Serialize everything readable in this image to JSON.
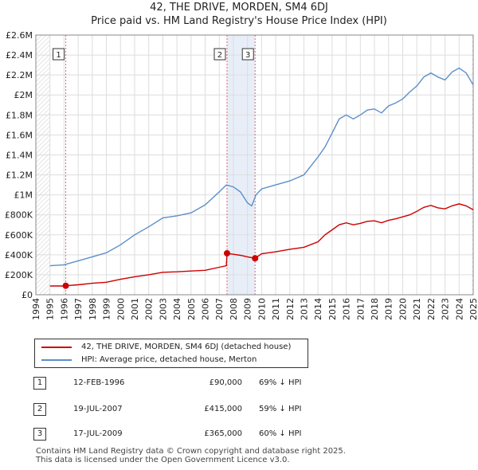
{
  "title_line1": "42, THE DRIVE, MORDEN, SM4 6DJ",
  "title_line2": "Price paid vs. HM Land Registry's House Price Index (HPI)",
  "colors": {
    "property": "#cc0000",
    "hpi": "#5b8fc9",
    "grid": "#dddddd",
    "vline": "#e06666",
    "shade": "#e8eef8"
  },
  "legend": {
    "property_label": "42, THE DRIVE, MORDEN, SM4 6DJ (detached house)",
    "hpi_label": "HPI: Average price, detached house, Merton"
  },
  "sales": [
    {
      "num": "1",
      "date": "12-FEB-1996",
      "price": "£90,000",
      "hpi_diff": "69% ↓ HPI"
    },
    {
      "num": "2",
      "date": "19-JUL-2007",
      "price": "£415,000",
      "hpi_diff": "59% ↓ HPI"
    },
    {
      "num": "3",
      "date": "17-JUL-2009",
      "price": "£365,000",
      "hpi_diff": "60% ↓ HPI"
    }
  ],
  "footer_line1": "Contains HM Land Registry data © Crown copyright and database right 2025.",
  "footer_line2": "This data is licensed under the Open Government Licence v3.0.",
  "chart_data": {
    "type": "line",
    "xlim": [
      1994,
      2025
    ],
    "ylim": [
      0,
      2600000
    ],
    "y_ticks": [
      0,
      200000,
      400000,
      600000,
      800000,
      1000000,
      1200000,
      1400000,
      1600000,
      1800000,
      2000000,
      2200000,
      2400000,
      2600000
    ],
    "y_tick_labels": [
      "£0",
      "£200K",
      "£400K",
      "£600K",
      "£800K",
      "£1M",
      "£1.2M",
      "£1.4M",
      "£1.6M",
      "£1.8M",
      "£2M",
      "£2.2M",
      "£2.4M",
      "£2.6M"
    ],
    "x_ticks": [
      "1994",
      "1995",
      "1996",
      "1997",
      "1998",
      "1999",
      "2000",
      "2001",
      "2002",
      "2003",
      "2004",
      "2005",
      "2006",
      "2007",
      "2008",
      "2009",
      "2010",
      "2011",
      "2012",
      "2013",
      "2014",
      "2015",
      "2016",
      "2017",
      "2018",
      "2019",
      "2020",
      "2021",
      "2022",
      "2023",
      "2024",
      "2025"
    ],
    "data_start": 1995.0,
    "data_end": 2025.0,
    "shaded_ranges": [
      [
        2007.54,
        2009.54
      ]
    ],
    "sale_points": [
      {
        "label": "1",
        "x": 1996.12,
        "y": 90000
      },
      {
        "label": "2",
        "x": 2007.55,
        "y": 415000
      },
      {
        "label": "3",
        "x": 2009.54,
        "y": 365000
      }
    ],
    "series": [
      {
        "name": "HPI: Average price, detached house, Merton",
        "x": [
          1995.0,
          1996.0,
          1997.0,
          1998.0,
          1999.0,
          2000.0,
          2001.0,
          2002.0,
          2003.0,
          2004.0,
          2005.0,
          2006.0,
          2007.0,
          2007.5,
          2008.0,
          2008.5,
          2009.0,
          2009.3,
          2009.6,
          2010.0,
          2011.0,
          2012.0,
          2013.0,
          2014.0,
          2014.5,
          2015.0,
          2015.5,
          2016.0,
          2016.5,
          2017.0,
          2017.5,
          2018.0,
          2018.5,
          2019.0,
          2019.5,
          2020.0,
          2020.5,
          2021.0,
          2021.5,
          2022.0,
          2022.5,
          2023.0,
          2023.5,
          2024.0,
          2024.5,
          2025.0
        ],
        "y": [
          290000,
          300000,
          340000,
          380000,
          420000,
          500000,
          600000,
          680000,
          770000,
          790000,
          820000,
          900000,
          1030000,
          1100000,
          1080000,
          1030000,
          920000,
          890000,
          1000000,
          1060000,
          1100000,
          1140000,
          1200000,
          1380000,
          1480000,
          1620000,
          1760000,
          1800000,
          1760000,
          1800000,
          1850000,
          1860000,
          1820000,
          1890000,
          1920000,
          1960000,
          2030000,
          2090000,
          2180000,
          2220000,
          2180000,
          2150000,
          2230000,
          2270000,
          2220000,
          2100000
        ]
      },
      {
        "name": "42, THE DRIVE, MORDEN, SM4 6DJ (detached house)",
        "x": [
          1995.0,
          1996.0,
          1996.12,
          1997.0,
          1998.0,
          1999.0,
          2000.0,
          2001.0,
          2002.0,
          2003.0,
          2004.0,
          2005.0,
          2006.0,
          2007.0,
          2007.5,
          2007.55,
          2008.0,
          2008.5,
          2009.0,
          2009.54,
          2010.0,
          2011.0,
          2012.0,
          2013.0,
          2014.0,
          2014.5,
          2015.0,
          2015.5,
          2016.0,
          2016.5,
          2017.0,
          2017.5,
          2018.0,
          2018.5,
          2019.0,
          2019.5,
          2020.0,
          2020.5,
          2021.0,
          2021.5,
          2022.0,
          2022.5,
          2023.0,
          2023.5,
          2024.0,
          2024.5,
          2025.0
        ],
        "y": [
          88000,
          88000,
          90000,
          100000,
          115000,
          125000,
          155000,
          180000,
          200000,
          225000,
          230000,
          238000,
          245000,
          275000,
          290000,
          415000,
          405000,
          395000,
          380000,
          365000,
          410000,
          430000,
          455000,
          475000,
          530000,
          600000,
          650000,
          700000,
          720000,
          700000,
          715000,
          735000,
          740000,
          720000,
          745000,
          760000,
          780000,
          800000,
          835000,
          875000,
          895000,
          870000,
          860000,
          890000,
          910000,
          890000,
          850000
        ]
      }
    ]
  }
}
